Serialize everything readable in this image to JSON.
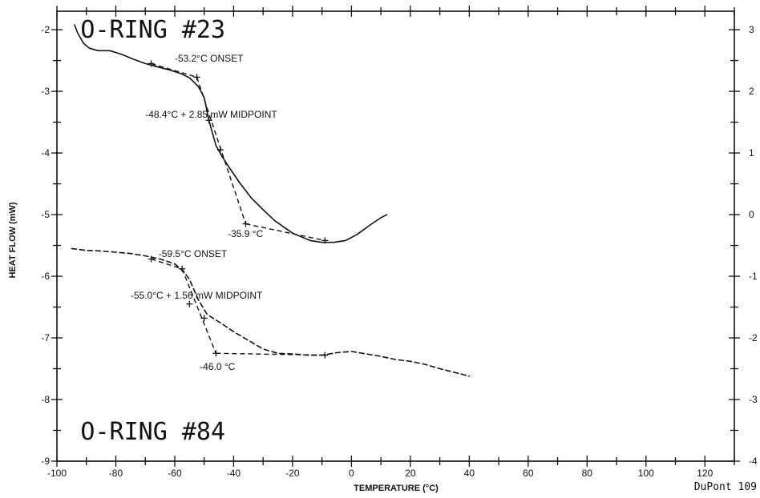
{
  "chart_data": {
    "type": "line",
    "title": "",
    "xlabel": "TEMPERATURE (°C)",
    "ylabel": "HEAT FLOW (mW)",
    "xlim": [
      -100,
      130
    ],
    "ylim": [
      -9,
      -1.7
    ],
    "y2lim": [
      -4,
      3.3
    ],
    "x_ticks": [
      -100,
      -80,
      -60,
      -40,
      -20,
      0,
      20,
      40,
      60,
      80,
      100,
      120
    ],
    "y_ticks": [
      -9,
      -8,
      -7,
      -6,
      -5,
      -4,
      -3,
      -2
    ],
    "y2_ticks": [
      -4,
      -3,
      -2,
      -1,
      0,
      1,
      2,
      3
    ],
    "grid": false,
    "series": [
      {
        "name": "O-RING #23",
        "style": "solid",
        "color": "#111111",
        "x": [
          -94,
          -93,
          -91,
          -89,
          -86,
          -82,
          -78,
          -74,
          -70,
          -66,
          -62,
          -58,
          -55,
          -52,
          -50,
          -48.4,
          -46,
          -44,
          -42,
          -38,
          -34,
          -30,
          -26,
          -20,
          -14,
          -10,
          -6,
          -2,
          2,
          6,
          10,
          12
        ],
        "y": [
          -1.92,
          -2.05,
          -2.22,
          -2.3,
          -2.34,
          -2.34,
          -2.4,
          -2.48,
          -2.55,
          -2.6,
          -2.65,
          -2.71,
          -2.78,
          -2.92,
          -3.1,
          -3.47,
          -3.88,
          -4.05,
          -4.2,
          -4.48,
          -4.73,
          -4.92,
          -5.1,
          -5.3,
          -5.42,
          -5.45,
          -5.45,
          -5.42,
          -5.32,
          -5.18,
          -5.05,
          -5.0
        ]
      },
      {
        "name": "O-RING #84",
        "style": "dashed",
        "color": "#111111",
        "x": [
          -95,
          -90,
          -85,
          -80,
          -75,
          -70,
          -65,
          -60,
          -57,
          -55,
          -52,
          -49,
          -45,
          -40,
          -35,
          -30,
          -25,
          -20,
          -15,
          -10,
          -5,
          0,
          5,
          10,
          15,
          20,
          25,
          30,
          35,
          40
        ],
        "y": [
          -5.55,
          -5.58,
          -5.59,
          -5.61,
          -5.63,
          -5.67,
          -5.72,
          -5.8,
          -5.92,
          -6.05,
          -6.38,
          -6.62,
          -6.74,
          -6.9,
          -7.04,
          -7.18,
          -7.25,
          -7.26,
          -7.28,
          -7.28,
          -7.24,
          -7.22,
          -7.26,
          -7.3,
          -7.35,
          -7.38,
          -7.43,
          -7.5,
          -7.56,
          -7.62
        ]
      }
    ],
    "tangent_lines": [
      {
        "x": [
          -68,
          -52.5
        ],
        "y": [
          -2.55,
          -2.77
        ]
      },
      {
        "x": [
          -52.5,
          -35.9
        ],
        "y": [
          -2.77,
          -5.15
        ]
      },
      {
        "x": [
          -35.9,
          -9
        ],
        "y": [
          -5.15,
          -5.42
        ]
      },
      {
        "x": [
          -68,
          -57.5
        ],
        "y": [
          -5.72,
          -5.88
        ]
      },
      {
        "x": [
          -57.5,
          -46
        ],
        "y": [
          -5.88,
          -7.25
        ]
      },
      {
        "x": [
          -46,
          -9
        ],
        "y": [
          -7.25,
          -7.28
        ]
      }
    ],
    "markers": [
      {
        "x": -68,
        "y": -2.55
      },
      {
        "x": -52.5,
        "y": -2.77
      },
      {
        "x": -48.4,
        "y": -3.47
      },
      {
        "x": -44.5,
        "y": -3.95
      },
      {
        "x": -35.9,
        "y": -5.15
      },
      {
        "x": -9,
        "y": -5.42
      },
      {
        "x": -68,
        "y": -5.72
      },
      {
        "x": -57.5,
        "y": -5.88
      },
      {
        "x": -55,
        "y": -6.45
      },
      {
        "x": -50,
        "y": -6.68
      },
      {
        "x": -46,
        "y": -7.25
      },
      {
        "x": -9,
        "y": -7.28
      }
    ],
    "annotations": [
      {
        "text": "-53.2°C ONSET",
        "x": -60,
        "y": -2.52
      },
      {
        "text": "-48.4°C + 2.85 mW  MIDPOINT",
        "x": -70,
        "y": -3.43
      },
      {
        "text": "-35.9 °C",
        "x": -42,
        "y": -5.36
      },
      {
        "text": "-59.5°C ONSET",
        "x": -65.5,
        "y": -5.69
      },
      {
        "text": "-55.0°C + 1.56 mW  MIDPOINT",
        "x": -75,
        "y": -6.36
      },
      {
        "text": "-46.0 °C",
        "x": -51.5,
        "y": -7.52
      }
    ],
    "labels": [
      {
        "text": "O-RING #23",
        "x": -92,
        "y": -2.13
      },
      {
        "text": "O-RING #84",
        "x": -92,
        "y": -8.65
      }
    ],
    "footer": "DuPont 109"
  }
}
